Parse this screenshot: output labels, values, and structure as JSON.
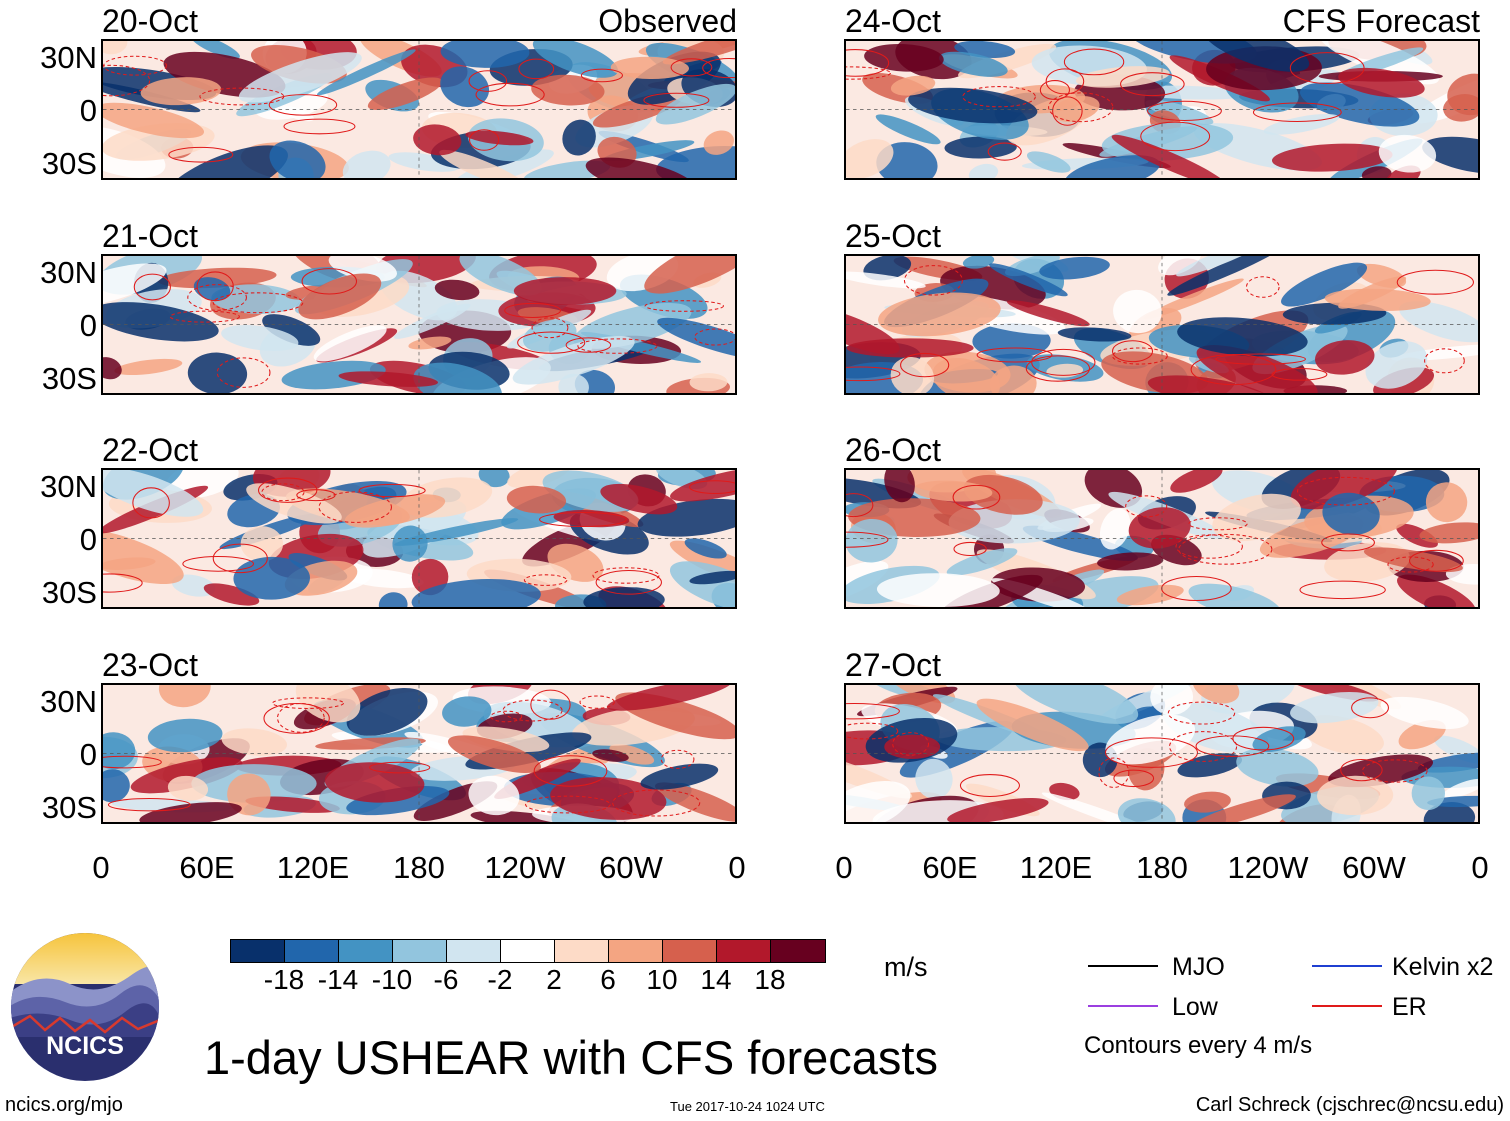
{
  "panels": [
    {
      "date": "20-Oct",
      "tag": "Observed",
      "seed": 11
    },
    {
      "date": "21-Oct",
      "tag": "",
      "seed": 23
    },
    {
      "date": "22-Oct",
      "tag": "",
      "seed": 37
    },
    {
      "date": "23-Oct",
      "tag": "",
      "seed": 41
    },
    {
      "date": "24-Oct",
      "tag": "CFS Forecast",
      "seed": 53
    },
    {
      "date": "25-Oct",
      "tag": "",
      "seed": 67
    },
    {
      "date": "26-Oct",
      "tag": "",
      "seed": 79
    },
    {
      "date": "27-Oct",
      "tag": "",
      "seed": 83
    }
  ],
  "lat_labels": [
    "30N",
    "0",
    "30S"
  ],
  "lon_labels": [
    "0",
    "60E",
    "120E",
    "180",
    "120W",
    "60W",
    "0"
  ],
  "colorbar": {
    "colors": [
      "#08306b",
      "#2166ac",
      "#4393c3",
      "#92c5de",
      "#d1e5f0",
      "#ffffff",
      "#fddbc7",
      "#f4a582",
      "#d6604d",
      "#b2182b",
      "#67001f"
    ],
    "ticks": [
      "-18",
      "-14",
      "-10",
      "-6",
      "-2",
      "2",
      "6",
      "10",
      "14",
      "18"
    ],
    "unit": "m/s"
  },
  "legend": [
    {
      "name": "MJO",
      "color": "#000000"
    },
    {
      "name": "Kelvin x2",
      "color": "#1f3fd1"
    },
    {
      "name": "Low",
      "color": "#9b3fe0"
    },
    {
      "name": "ER",
      "color": "#e01a1a"
    }
  ],
  "contour_note": "Contours every 4 m/s",
  "title": "1-day USHEAR with CFS forecasts",
  "logo_text": "NCICS",
  "footer": {
    "url": "ncics.org/mjo",
    "timestamp": "Tue 2017-10-24 1024 UTC",
    "author": "Carl Schreck (cjschrec@ncsu.edu)"
  },
  "chart_data": {
    "type": "heatmap",
    "title": "1-day USHEAR with CFS forecasts",
    "variable": "USHEAR",
    "unit": "m/s",
    "x_labels": [
      "0",
      "60E",
      "120E",
      "180",
      "120W",
      "60W",
      "0"
    ],
    "y_labels": [
      "30N",
      "0",
      "30S"
    ],
    "xlim": [
      0,
      360
    ],
    "ylim": [
      -40,
      40
    ],
    "levels": [
      -18,
      -14,
      -10,
      -6,
      -2,
      2,
      6,
      10,
      14,
      18
    ],
    "observed_dates": [
      "20-Oct",
      "21-Oct",
      "22-Oct",
      "23-Oct"
    ],
    "forecast_dates": [
      "24-Oct",
      "25-Oct",
      "26-Oct",
      "27-Oct"
    ],
    "contour_interval": 4,
    "contour_types": [
      "MJO",
      "Kelvin x2",
      "Low",
      "ER"
    ]
  }
}
